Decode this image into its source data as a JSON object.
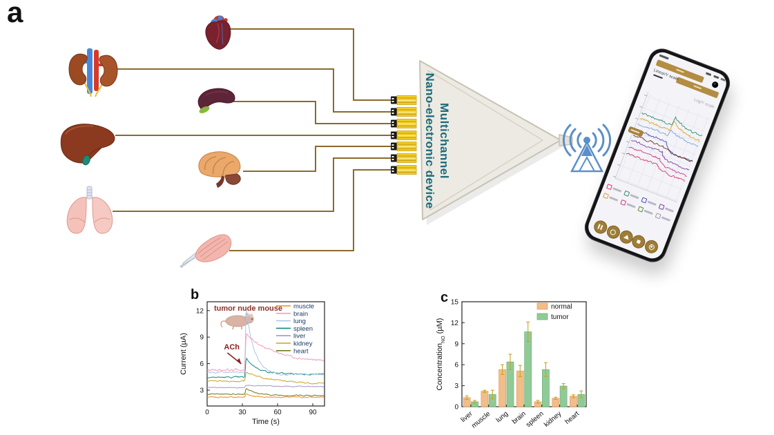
{
  "panels": {
    "a": "a",
    "b": "b",
    "c": "c"
  },
  "device": {
    "label_line1": "Multichannel",
    "label_line2": "Nano-electronic device",
    "text_color": "#1b6b7b",
    "body_color": "#eceae2",
    "connector_color": "#f2cf2a",
    "wire_color": "#8a6a2a"
  },
  "organs": [
    {
      "name": "heart"
    },
    {
      "name": "kidney"
    },
    {
      "name": "spleen"
    },
    {
      "name": "liver"
    },
    {
      "name": "brain"
    },
    {
      "name": "lung"
    },
    {
      "name": "muscle"
    }
  ],
  "wireless": {
    "color": "#5b8fc9"
  },
  "phone": {
    "tab_linear": "Linear/Y scale",
    "tab_log": "Log/Y scale",
    "accent_color": "#b28d42",
    "traces": [
      {
        "color": "#2f8f6f",
        "y": 38,
        "bump": -12,
        "mode": "pulse"
      },
      {
        "color": "#d9a52a",
        "y": 46,
        "bump": -14,
        "mode": "pulse"
      },
      {
        "color": "#7aa7d9",
        "y": 54,
        "bump": -9,
        "mode": "pulse"
      },
      {
        "color": "#3f4fae",
        "y": 64,
        "bump": 13,
        "mode": "step"
      },
      {
        "color": "#6b3226",
        "y": 72,
        "bump": 5,
        "mode": "step"
      },
      {
        "color": "#7a3f9e",
        "y": 80,
        "bump": 11,
        "mode": "step"
      },
      {
        "color": "#c23a85",
        "y": 90,
        "bump": 9,
        "mode": "step"
      },
      {
        "color": "#d8356a",
        "y": 100,
        "bump": 7,
        "mode": "step"
      }
    ],
    "checkbox_colors": [
      "#d8356a",
      "#2f8f6f",
      "#3f4fae",
      "#7a3f9e",
      "#d9a52a",
      "#c23a85",
      "#5a8f3a",
      "#9a9aa4"
    ]
  },
  "chart_data": [
    {
      "id": "panel_b",
      "type": "line",
      "title": "tumor nude mouse",
      "title_color": "#8b3128",
      "xlabel": "Time (s)",
      "ylabel": "Current (µA)",
      "xlim": [
        0,
        100
      ],
      "ylim": [
        1.2,
        13
      ],
      "x_ticks": [
        0,
        30,
        60,
        90
      ],
      "y_ticks": [
        3,
        6,
        9,
        12
      ],
      "grid": false,
      "legend_position": "top-right",
      "legend_text_color": "#1a3a6b",
      "annotation": {
        "text": "ACh",
        "color": "#8b2020",
        "x_s": 32
      },
      "series": [
        {
          "name": "muscle",
          "color": "#f08c1e",
          "baseline": 2.2,
          "peak": 2.6,
          "end": 2.2,
          "tau": 6,
          "noise": 0.06
        },
        {
          "name": "brain",
          "color": "#f29fc0",
          "baseline": 5.3,
          "peak": 9.3,
          "end": 6.0,
          "tau": 28,
          "noise": 0.13
        },
        {
          "name": "lung",
          "color": "#a9c7e8",
          "baseline": 5.0,
          "peak": 12.3,
          "end": 4.75,
          "tau": 7,
          "noise": 0.11
        },
        {
          "name": "spleen",
          "color": "#14897f",
          "baseline": 4.45,
          "peak": 6.6,
          "end": 4.8,
          "tau": 10,
          "noise": 0.08
        },
        {
          "name": "liver",
          "color": "#a893cc",
          "baseline": 3.3,
          "peak": 3.55,
          "end": 3.4,
          "tau": 20,
          "noise": 0.04
        },
        {
          "name": "kidney",
          "color": "#c9a227",
          "baseline": 4.0,
          "peak": 5.05,
          "end": 3.65,
          "tau": 25,
          "noise": 0.07
        },
        {
          "name": "heart",
          "color": "#6e7a1e",
          "baseline": 2.55,
          "peak": 3.25,
          "end": 2.4,
          "tau": 8,
          "noise": 0.06
        }
      ]
    },
    {
      "id": "panel_c",
      "type": "bar",
      "ylabel_main": "Concentration",
      "ylabel_sub": "NO",
      "ylabel_unit": " (µM)",
      "ylim": [
        0,
        15
      ],
      "y_ticks": [
        0,
        3,
        6,
        9,
        12,
        15
      ],
      "categories": [
        "liver",
        "muscle",
        "lung",
        "brain",
        "spleen",
        "kidney",
        "heart"
      ],
      "series": [
        {
          "name": "normal",
          "color": "#f2bd88",
          "edge": "#e3a368",
          "values": [
            1.3,
            2.2,
            5.3,
            5.1,
            0.7,
            1.2,
            1.5
          ],
          "errors": [
            0.25,
            0.15,
            0.7,
            0.8,
            0.2,
            0.15,
            0.2
          ]
        },
        {
          "name": "tumor",
          "color": "#90cb97",
          "edge": "#74b47d",
          "values": [
            0.7,
            1.75,
            6.4,
            10.7,
            5.3,
            2.95,
            1.75
          ],
          "errors": [
            0.2,
            0.6,
            1.1,
            1.4,
            1.0,
            0.35,
            0.5
          ]
        }
      ],
      "error_color": "#c9a227",
      "legend_position": "top-right"
    }
  ]
}
